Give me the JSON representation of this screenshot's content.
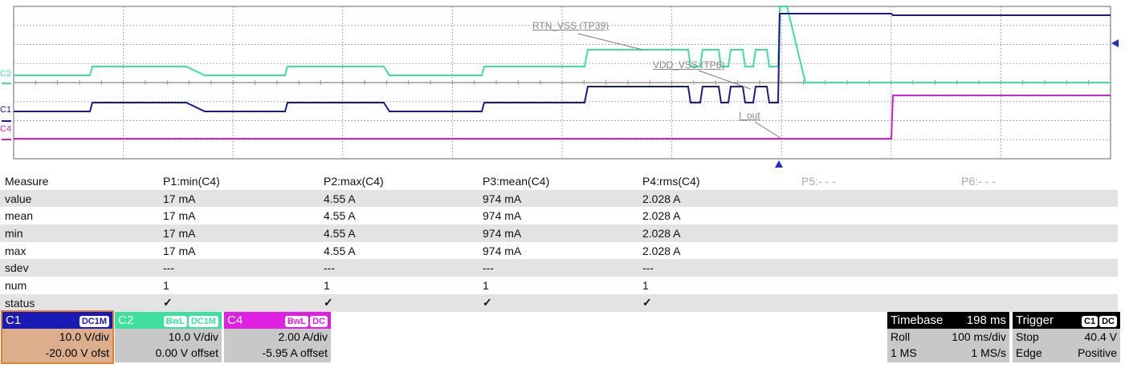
{
  "colors": {
    "c1": "#1a1a8c",
    "c2": "#3ee0a0",
    "c4": "#d020d0",
    "c1_body": "#dcae8c",
    "panel_gray": "#c8c8c8"
  },
  "channel_markers": {
    "c1": "C1",
    "c2": "C2",
    "c4": "C4"
  },
  "trace_labels": {
    "rtn": "RTN_VSS (TP39)",
    "vdd": "VDD_VSS (TP6)",
    "iout": "I_out"
  },
  "icons": {
    "trigger_time": "triangle-up",
    "trigger_level": "triangle-left"
  },
  "measure": {
    "header": [
      "Measure",
      "P1:min(C4)",
      "P2:max(C4)",
      "P3:mean(C4)",
      "P4:rms(C4)",
      "P5:- - -",
      "P6:- - -"
    ],
    "rows": [
      {
        "label": "value",
        "cells": [
          "17 mA",
          "4.55 A",
          "974 mA",
          "2.028 A"
        ]
      },
      {
        "label": "mean",
        "cells": [
          "17 mA",
          "4.55 A",
          "974 mA",
          "2.028 A"
        ]
      },
      {
        "label": "min",
        "cells": [
          "17 mA",
          "4.55 A",
          "974 mA",
          "2.028 A"
        ]
      },
      {
        "label": "max",
        "cells": [
          "17 mA",
          "4.55 A",
          "974 mA",
          "2.028 A"
        ]
      },
      {
        "label": "sdev",
        "cells": [
          "---",
          "---",
          "---",
          "---"
        ]
      },
      {
        "label": "num",
        "cells": [
          "1",
          "1",
          "1",
          "1"
        ]
      },
      {
        "label": "status",
        "cells": [
          "✓",
          "✓",
          "✓",
          "✓"
        ]
      }
    ]
  },
  "channels": [
    {
      "name": "C1",
      "tags": [
        "DC1M"
      ],
      "scale": "10.0 V/div",
      "offset": "-20.00 V ofst"
    },
    {
      "name": "C2",
      "tags": [
        "BwL",
        "DC1M"
      ],
      "scale": "10.0 V/div",
      "offset": "0.00 V offset"
    },
    {
      "name": "C4",
      "tags": [
        "BwL",
        "DC"
      ],
      "scale": "2.00 A/div",
      "offset": "-5.95 A offset"
    }
  ],
  "timebase": {
    "title": "Timebase",
    "delay": "198 ms",
    "mode": "Roll",
    "scale": "100 ms/div",
    "samples": "1 MS",
    "rate": "1 MS/s"
  },
  "trigger": {
    "title": "Trigger",
    "source": "C1",
    "coupling": "DC",
    "state": "Stop",
    "level": "40.4 V",
    "type": "Edge",
    "slope": "Positive"
  }
}
